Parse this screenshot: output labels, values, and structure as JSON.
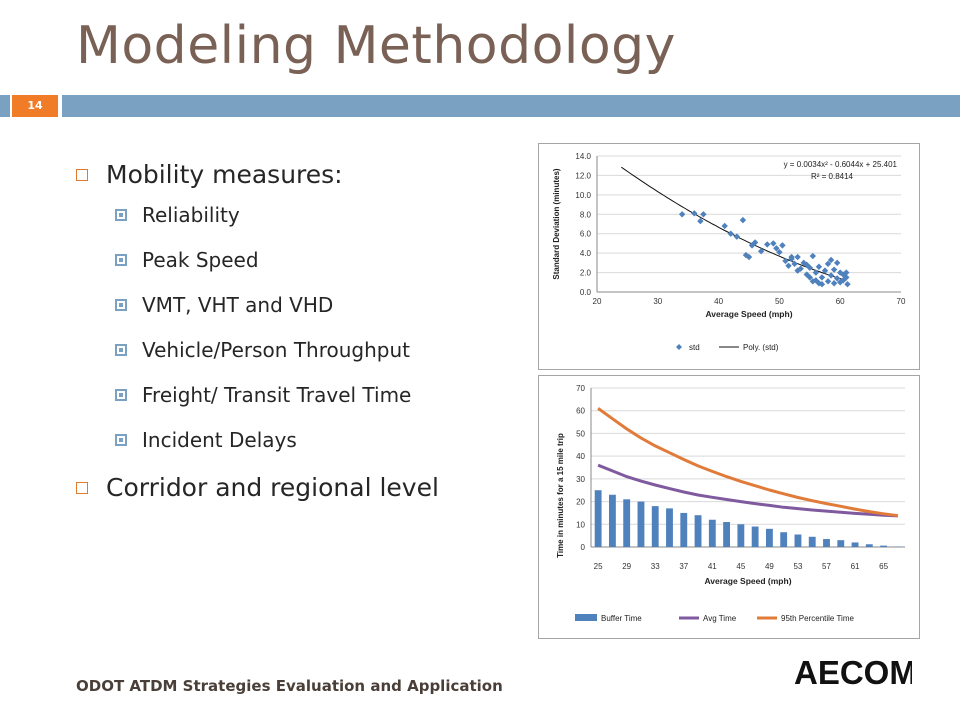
{
  "slide": {
    "title": "Modeling Methodology",
    "number": "14",
    "footer": "ODOT ATDM Strategies Evaluation and Application",
    "logo_text": "AECOM",
    "bullets": [
      {
        "text": "Mobility measures:",
        "sub": [
          "Reliability",
          "Peak Speed",
          "VMT, VHT and VHD",
          "Vehicle/Person Throughput",
          "Freight/ Transit Travel Time",
          "Incident Delays"
        ]
      },
      {
        "text": "Corridor and regional level",
        "sub": []
      }
    ],
    "colors": {
      "title": "#7a6155",
      "accent_orange": "#f07c27",
      "band_blue": "#7aa0c2"
    }
  },
  "chart_data": [
    {
      "type": "scatter",
      "xlabel": "Average Speed (mph)",
      "ylabel": "Standard Deviation (minutes)",
      "xlim": [
        20,
        70
      ],
      "ylim": [
        0,
        14
      ],
      "x_ticks": [
        "20",
        "30",
        "40",
        "50",
        "60",
        "70"
      ],
      "y_ticks": [
        "0.0",
        "2.0",
        "4.0",
        "6.0",
        "8.0",
        "10.0",
        "12.0",
        "14.0"
      ],
      "grid": true,
      "equation": "y = 0.0034x² - 0.6044x + 25.401",
      "r_squared": "R² = 0.8414",
      "trendline": {
        "name": "Poly. (std)",
        "coef": [
          0.0034,
          -0.6044,
          25.401
        ],
        "x_range": [
          24,
          61
        ]
      },
      "legend": {
        "placement": "bottom",
        "entries": [
          "std",
          "Poly. (std)"
        ]
      },
      "series": [
        {
          "name": "std",
          "color": "#4f81bd",
          "points": [
            [
              34,
              8
            ],
            [
              36,
              8.1
            ],
            [
              37,
              7.3
            ],
            [
              37.5,
              8
            ],
            [
              41,
              6.8
            ],
            [
              42,
              6
            ],
            [
              43,
              5.7
            ],
            [
              44,
              7.4
            ],
            [
              44.5,
              3.8
            ],
            [
              45,
              3.6
            ],
            [
              45.5,
              4.8
            ],
            [
              46,
              5.1
            ],
            [
              47,
              4.2
            ],
            [
              48,
              4.9
            ],
            [
              49,
              5
            ],
            [
              49.5,
              4.5
            ],
            [
              50,
              4.1
            ],
            [
              50.5,
              4.8
            ],
            [
              51,
              3.2
            ],
            [
              51.5,
              2.7
            ],
            [
              52,
              3.4
            ],
            [
              52.5,
              2.9
            ],
            [
              53,
              3.6
            ],
            [
              53.5,
              2.4
            ],
            [
              54,
              3
            ],
            [
              54.5,
              1.8
            ],
            [
              55,
              2.5
            ],
            [
              55,
              1.5
            ],
            [
              55.5,
              3.7
            ],
            [
              56,
              2
            ],
            [
              56,
              1.2
            ],
            [
              56.5,
              2.6
            ],
            [
              57,
              1.5
            ],
            [
              57,
              0.8
            ],
            [
              57.5,
              2.2
            ],
            [
              58,
              1.1
            ],
            [
              58,
              2.9
            ],
            [
              58.5,
              1.7
            ],
            [
              58.5,
              3.3
            ],
            [
              59,
              0.9
            ],
            [
              59,
              2.3
            ],
            [
              59.5,
              1.4
            ],
            [
              59.5,
              3
            ],
            [
              60,
              1
            ],
            [
              60,
              2
            ],
            [
              60.5,
              1.8
            ],
            [
              60.5,
              1.2
            ],
            [
              61,
              1.5
            ],
            [
              61,
              2
            ],
            [
              61.2,
              0.8
            ],
            [
              55.5,
              1.1
            ],
            [
              54.5,
              2.8
            ],
            [
              53,
              2.2
            ],
            [
              52,
              3.6
            ],
            [
              56.5,
              0.9
            ]
          ]
        }
      ]
    },
    {
      "type": "bar",
      "ylabel": "Time in minutes for a 15 mile trip",
      "xlabel": "Average Speed (mph)",
      "ylim": [
        0,
        70
      ],
      "y_ticks": [
        "0",
        "10",
        "20",
        "30",
        "40",
        "50",
        "60",
        "70"
      ],
      "x": [
        25,
        27,
        29,
        31,
        33,
        35,
        37,
        39,
        41,
        43,
        45,
        47,
        49,
        51,
        53,
        55,
        57,
        59,
        61,
        63,
        65,
        67
      ],
      "x_tick_labels": [
        "25",
        "29",
        "33",
        "37",
        "41",
        "45",
        "49",
        "53",
        "57",
        "61",
        "65"
      ],
      "grid": true,
      "legend": {
        "placement": "bottom",
        "entries": [
          "Buffer Time",
          "Avg Time",
          "95th Percentile Time"
        ]
      },
      "series": [
        {
          "name": "Buffer Time",
          "kind": "bar",
          "color": "#4f81bd",
          "values": [
            25,
            23,
            21,
            20,
            18,
            17,
            15,
            14,
            12,
            11,
            10,
            9,
            8,
            6.5,
            5.5,
            4.5,
            3.5,
            3,
            2,
            1.2,
            0.6,
            0.2
          ]
        },
        {
          "name": "Avg Time",
          "kind": "line",
          "color": "#7f5a9e",
          "values": [
            36,
            33.5,
            31,
            29,
            27.3,
            25.7,
            24.2,
            22.9,
            21.9,
            20.9,
            20,
            19.1,
            18.3,
            17.5,
            16.9,
            16.3,
            15.8,
            15.3,
            14.8,
            14.4,
            14,
            13.7
          ]
        },
        {
          "name": "95th Percentile Time",
          "kind": "line",
          "color": "#e07b39",
          "values": [
            61,
            56.5,
            52,
            48,
            44.5,
            41.5,
            38.5,
            35.7,
            33.3,
            31,
            28.9,
            27,
            25.1,
            23.4,
            21.8,
            20.4,
            19.1,
            17.9,
            16.7,
            15.6,
            14.6,
            13.8
          ]
        }
      ]
    }
  ]
}
